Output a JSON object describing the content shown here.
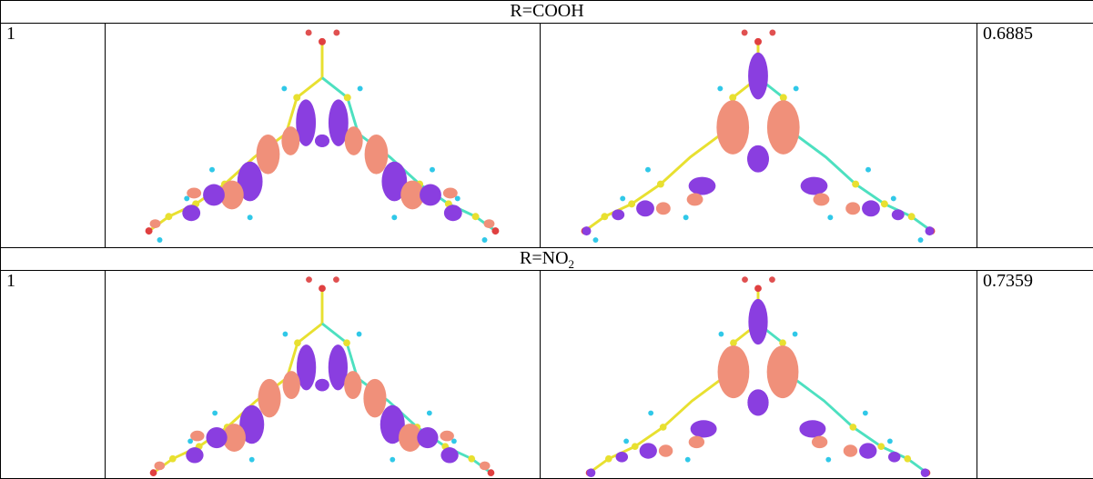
{
  "sections": [
    {
      "header": "R=COOH",
      "rows": [
        {
          "index": "1",
          "value": "0.6885"
        }
      ]
    },
    {
      "header": "R=NO",
      "header_sub": "2",
      "rows": [
        {
          "index": "1",
          "value": "0.7359"
        }
      ]
    }
  ]
}
